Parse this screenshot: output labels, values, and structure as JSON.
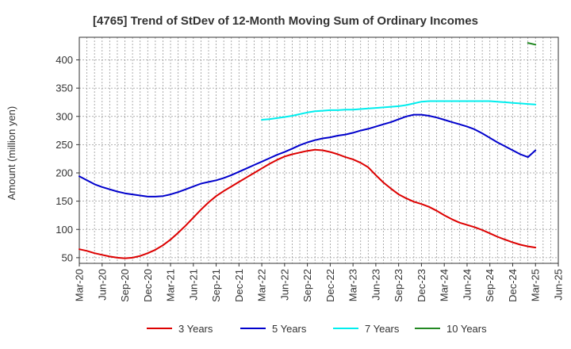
{
  "chart_data": {
    "type": "line",
    "title": "[4765]  Trend of StDev of 12-Month Moving Sum of Ordinary Incomes",
    "xlabel": "",
    "ylabel": "Amount (million yen)",
    "ylim": [
      40,
      440
    ],
    "yticks": [
      50,
      100,
      150,
      200,
      250,
      300,
      350,
      400
    ],
    "grid": true,
    "legend_position": "bottom",
    "x_tick_labels": [
      "Mar-20",
      "Jun-20",
      "Sep-20",
      "Dec-20",
      "Mar-21",
      "Jun-21",
      "Sep-21",
      "Dec-21",
      "Mar-22",
      "Jun-22",
      "Sep-22",
      "Dec-22",
      "Mar-23",
      "Jun-23",
      "Sep-23",
      "Dec-23",
      "Mar-24",
      "Jun-24",
      "Sep-24",
      "Dec-24",
      "Mar-25",
      "Jun-25"
    ],
    "x_months_range": [
      0,
      63
    ],
    "series": [
      {
        "name": "3 Years",
        "color": "#dd0000",
        "months": [
          0,
          1,
          2,
          3,
          4,
          5,
          6,
          7,
          8,
          9,
          10,
          11,
          12,
          13,
          14,
          15,
          16,
          17,
          18,
          19,
          20,
          21,
          22,
          23,
          24,
          25,
          26,
          27,
          28,
          29,
          30,
          31,
          32,
          33,
          34,
          35,
          36,
          37,
          38,
          39,
          40,
          41,
          42,
          43,
          44,
          45,
          46,
          47,
          48,
          49,
          50,
          51,
          52,
          53,
          54,
          55,
          56,
          57,
          58,
          59,
          60
        ],
        "values": [
          65,
          62,
          58,
          55,
          52,
          50,
          49,
          50,
          53,
          58,
          64,
          72,
          82,
          94,
          107,
          121,
          135,
          148,
          159,
          168,
          176,
          184,
          192,
          200,
          208,
          216,
          223,
          229,
          233,
          236,
          239,
          241,
          240,
          237,
          233,
          228,
          224,
          218,
          210,
          196,
          183,
          172,
          162,
          155,
          149,
          145,
          140,
          133,
          125,
          118,
          112,
          108,
          104,
          99,
          93,
          87,
          82,
          77,
          73,
          70,
          68
        ]
      },
      {
        "name": "5 Years",
        "color": "#0000cc",
        "months": [
          0,
          1,
          2,
          3,
          4,
          5,
          6,
          7,
          8,
          9,
          10,
          11,
          12,
          13,
          14,
          15,
          16,
          17,
          18,
          19,
          20,
          21,
          22,
          23,
          24,
          25,
          26,
          27,
          28,
          29,
          30,
          31,
          32,
          33,
          34,
          35,
          36,
          37,
          38,
          39,
          40,
          41,
          42,
          43,
          44,
          45,
          46,
          47,
          48,
          49,
          50,
          51,
          52,
          53,
          54,
          55,
          56,
          57,
          58,
          59,
          60
        ],
        "values": [
          194,
          187,
          180,
          175,
          171,
          167,
          164,
          162,
          160,
          158,
          158,
          159,
          162,
          166,
          171,
          176,
          181,
          184,
          187,
          191,
          196,
          202,
          208,
          214,
          220,
          226,
          232,
          237,
          243,
          249,
          254,
          258,
          261,
          263,
          266,
          268,
          271,
          275,
          278,
          282,
          286,
          290,
          295,
          300,
          303,
          303,
          301,
          298,
          294,
          290,
          286,
          282,
          277,
          270,
          262,
          254,
          247,
          240,
          233,
          228,
          240
        ]
      },
      {
        "name": "7 Years",
        "color": "#00eeee",
        "months": [
          24,
          25,
          26,
          27,
          28,
          29,
          30,
          31,
          32,
          33,
          34,
          35,
          36,
          37,
          38,
          39,
          40,
          41,
          42,
          43,
          44,
          45,
          46,
          47,
          48,
          49,
          50,
          51,
          52,
          53,
          54,
          55,
          56,
          57,
          58,
          59,
          60
        ],
        "values": [
          294,
          295,
          297,
          299,
          301,
          304,
          307,
          309,
          310,
          311,
          311,
          312,
          312,
          313,
          314,
          315,
          316,
          317,
          318,
          320,
          323,
          326,
          327,
          327,
          327,
          327,
          327,
          327,
          327,
          327,
          327,
          326,
          325,
          324,
          323,
          322,
          321
        ]
      },
      {
        "name": "10 Years",
        "color": "#228822",
        "months": [
          59,
          60
        ],
        "values": [
          430,
          427
        ]
      }
    ]
  }
}
